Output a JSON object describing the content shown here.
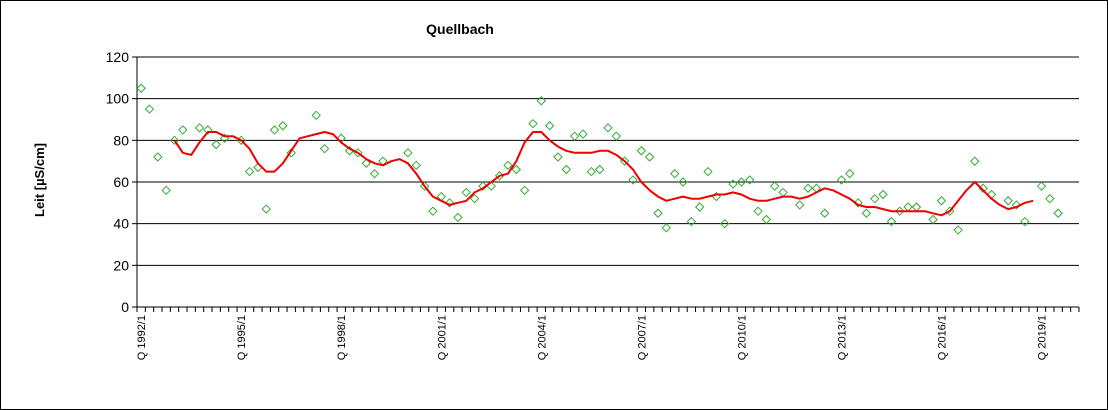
{
  "chart_data": {
    "type": "line",
    "title": "Quellbach",
    "ylabel": "Leit [µS/cm]",
    "xlabel": "",
    "ylim": [
      0,
      120
    ],
    "yticks": [
      0,
      20,
      40,
      60,
      80,
      100,
      120
    ],
    "grid": "horizontal",
    "legend": "none",
    "x_start": [
      1992,
      1
    ],
    "x_count": 113,
    "xtick_labels": [
      "Q 1992/1",
      "Q 1995/1",
      "Q 1998/1",
      "Q 2001/1",
      "Q 2004/1",
      "Q 2007/1",
      "Q 2010/1",
      "Q 2013/1",
      "Q 2016/1",
      "Q 2019/1"
    ],
    "colors": {
      "scatter": "#33aa33",
      "line": "#ee0000",
      "grid": "#000000"
    },
    "series": [
      {
        "kind": "scatter",
        "points": [
          [
            "1992 Q1",
            105
          ],
          [
            "1992 Q2",
            95
          ],
          [
            "1992 Q3",
            72
          ],
          [
            "1992 Q4",
            56
          ],
          [
            "1993 Q1",
            80
          ],
          [
            "1993 Q2",
            85
          ],
          [
            "1993 Q4",
            86
          ],
          [
            "1994 Q1",
            85
          ],
          [
            "1994 Q2",
            78
          ],
          [
            "1994 Q3",
            81
          ],
          [
            "1995 Q1",
            80
          ],
          [
            "1995 Q2",
            65
          ],
          [
            "1995 Q3",
            67
          ],
          [
            "1995 Q4",
            47
          ],
          [
            "1996 Q1",
            85
          ],
          [
            "1996 Q2",
            87
          ],
          [
            "1996 Q3",
            74
          ],
          [
            "1997 Q2",
            92
          ],
          [
            "1997 Q3",
            76
          ],
          [
            "1998 Q1",
            81
          ],
          [
            "1998 Q2",
            75
          ],
          [
            "1998 Q3",
            74
          ],
          [
            "1998 Q4",
            69
          ],
          [
            "1999 Q1",
            64
          ],
          [
            "1999 Q2",
            70
          ],
          [
            "2000 Q1",
            74
          ],
          [
            "2000 Q2",
            68
          ],
          [
            "2000 Q3",
            58
          ],
          [
            "2000 Q4",
            46
          ],
          [
            "2001 Q1",
            53
          ],
          [
            "2001 Q2",
            50
          ],
          [
            "2001 Q3",
            43
          ],
          [
            "2001 Q4",
            55
          ],
          [
            "2002 Q1",
            52
          ],
          [
            "2002 Q2",
            58
          ],
          [
            "2002 Q3",
            58
          ],
          [
            "2002 Q4",
            63
          ],
          [
            "2003 Q1",
            68
          ],
          [
            "2003 Q2",
            66
          ],
          [
            "2003 Q3",
            56
          ],
          [
            "2003 Q4",
            88
          ],
          [
            "2004 Q1",
            99
          ],
          [
            "2004 Q2",
            87
          ],
          [
            "2004 Q3",
            72
          ],
          [
            "2004 Q4",
            66
          ],
          [
            "2005 Q1",
            82
          ],
          [
            "2005 Q2",
            83
          ],
          [
            "2005 Q3",
            65
          ],
          [
            "2005 Q4",
            66
          ],
          [
            "2006 Q1",
            86
          ],
          [
            "2006 Q2",
            82
          ],
          [
            "2006 Q3",
            70
          ],
          [
            "2006 Q4",
            61
          ],
          [
            "2007 Q1",
            75
          ],
          [
            "2007 Q2",
            72
          ],
          [
            "2007 Q3",
            45
          ],
          [
            "2007 Q4",
            38
          ],
          [
            "2008 Q1",
            64
          ],
          [
            "2008 Q2",
            60
          ],
          [
            "2008 Q3",
            41
          ],
          [
            "2008 Q4",
            48
          ],
          [
            "2009 Q1",
            65
          ],
          [
            "2009 Q2",
            53
          ],
          [
            "2009 Q3",
            40
          ],
          [
            "2009 Q4",
            59
          ],
          [
            "2010 Q1",
            60
          ],
          [
            "2010 Q2",
            61
          ],
          [
            "2010 Q3",
            46
          ],
          [
            "2010 Q4",
            42
          ],
          [
            "2011 Q1",
            58
          ],
          [
            "2011 Q2",
            55
          ],
          [
            "2011 Q4",
            49
          ],
          [
            "2012 Q1",
            57
          ],
          [
            "2012 Q2",
            57
          ],
          [
            "2012 Q3",
            45
          ],
          [
            "2013 Q1",
            61
          ],
          [
            "2013 Q2",
            64
          ],
          [
            "2013 Q3",
            50
          ],
          [
            "2013 Q4",
            45
          ],
          [
            "2014 Q1",
            52
          ],
          [
            "2014 Q2",
            54
          ],
          [
            "2014 Q3",
            41
          ],
          [
            "2014 Q4",
            46
          ],
          [
            "2015 Q1",
            48
          ],
          [
            "2015 Q2",
            48
          ],
          [
            "2015 Q4",
            42
          ],
          [
            "2016 Q1",
            51
          ],
          [
            "2016 Q2",
            46
          ],
          [
            "2016 Q3",
            37
          ],
          [
            "2017 Q1",
            70
          ],
          [
            "2017 Q2",
            57
          ],
          [
            "2017 Q3",
            54
          ],
          [
            "2018 Q1",
            51
          ],
          [
            "2018 Q2",
            49
          ],
          [
            "2018 Q3",
            41
          ],
          [
            "2019 Q1",
            58
          ],
          [
            "2019 Q2",
            52
          ],
          [
            "2019 Q3",
            45
          ]
        ]
      },
      {
        "kind": "line",
        "points": [
          [
            "1993 Q1",
            80
          ],
          [
            "1993 Q2",
            74
          ],
          [
            "1993 Q3",
            73
          ],
          [
            "1993 Q4",
            79
          ],
          [
            "1994 Q1",
            84
          ],
          [
            "1994 Q2",
            84
          ],
          [
            "1994 Q3",
            82
          ],
          [
            "1994 Q4",
            82
          ],
          [
            "1995 Q1",
            80
          ],
          [
            "1995 Q2",
            76
          ],
          [
            "1995 Q3",
            69
          ],
          [
            "1995 Q4",
            65
          ],
          [
            "1996 Q1",
            65
          ],
          [
            "1996 Q2",
            69
          ],
          [
            "1996 Q3",
            75
          ],
          [
            "1996 Q4",
            81
          ],
          [
            "1997 Q1",
            82
          ],
          [
            "1997 Q2",
            83
          ],
          [
            "1997 Q3",
            84
          ],
          [
            "1997 Q4",
            83
          ],
          [
            "1998 Q1",
            79
          ],
          [
            "1998 Q2",
            76
          ],
          [
            "1998 Q3",
            74
          ],
          [
            "1998 Q4",
            71
          ],
          [
            "1999 Q1",
            69
          ],
          [
            "1999 Q2",
            68
          ],
          [
            "1999 Q3",
            70
          ],
          [
            "1999 Q4",
            71
          ],
          [
            "2000 Q1",
            69
          ],
          [
            "2000 Q2",
            64
          ],
          [
            "2000 Q3",
            58
          ],
          [
            "2000 Q4",
            53
          ],
          [
            "2001 Q1",
            51
          ],
          [
            "2001 Q2",
            49
          ],
          [
            "2001 Q3",
            50
          ],
          [
            "2001 Q4",
            51
          ],
          [
            "2002 Q1",
            55
          ],
          [
            "2002 Q2",
            57
          ],
          [
            "2002 Q3",
            60
          ],
          [
            "2002 Q4",
            63
          ],
          [
            "2003 Q1",
            64
          ],
          [
            "2003 Q2",
            70
          ],
          [
            "2003 Q3",
            79
          ],
          [
            "2003 Q4",
            84
          ],
          [
            "2004 Q1",
            84
          ],
          [
            "2004 Q2",
            80
          ],
          [
            "2004 Q3",
            77
          ],
          [
            "2004 Q4",
            75
          ],
          [
            "2005 Q1",
            74
          ],
          [
            "2005 Q2",
            74
          ],
          [
            "2005 Q3",
            74
          ],
          [
            "2005 Q4",
            75
          ],
          [
            "2006 Q1",
            75
          ],
          [
            "2006 Q2",
            73
          ],
          [
            "2006 Q3",
            70
          ],
          [
            "2006 Q4",
            66
          ],
          [
            "2007 Q1",
            60
          ],
          [
            "2007 Q2",
            56
          ],
          [
            "2007 Q3",
            53
          ],
          [
            "2007 Q4",
            51
          ],
          [
            "2008 Q1",
            52
          ],
          [
            "2008 Q2",
            53
          ],
          [
            "2008 Q3",
            52
          ],
          [
            "2008 Q4",
            52
          ],
          [
            "2009 Q1",
            53
          ],
          [
            "2009 Q2",
            54
          ],
          [
            "2009 Q3",
            54
          ],
          [
            "2009 Q4",
            55
          ],
          [
            "2010 Q1",
            54
          ],
          [
            "2010 Q2",
            52
          ],
          [
            "2010 Q3",
            51
          ],
          [
            "2010 Q4",
            51
          ],
          [
            "2011 Q1",
            52
          ],
          [
            "2011 Q2",
            53
          ],
          [
            "2011 Q3",
            53
          ],
          [
            "2011 Q4",
            52
          ],
          [
            "2012 Q1",
            53
          ],
          [
            "2012 Q2",
            55
          ],
          [
            "2012 Q3",
            57
          ],
          [
            "2012 Q4",
            56
          ],
          [
            "2013 Q1",
            54
          ],
          [
            "2013 Q2",
            52
          ],
          [
            "2013 Q3",
            49
          ],
          [
            "2013 Q4",
            48
          ],
          [
            "2014 Q1",
            48
          ],
          [
            "2014 Q2",
            47
          ],
          [
            "2014 Q3",
            46
          ],
          [
            "2014 Q4",
            46
          ],
          [
            "2015 Q1",
            46
          ],
          [
            "2015 Q2",
            46
          ],
          [
            "2015 Q3",
            46
          ],
          [
            "2015 Q4",
            45
          ],
          [
            "2016 Q1",
            44
          ],
          [
            "2016 Q2",
            46
          ],
          [
            "2016 Q3",
            51
          ],
          [
            "2016 Q4",
            56
          ],
          [
            "2017 Q1",
            60
          ],
          [
            "2017 Q2",
            56
          ],
          [
            "2017 Q3",
            52
          ],
          [
            "2017 Q4",
            49
          ],
          [
            "2018 Q1",
            47
          ],
          [
            "2018 Q2",
            48
          ],
          [
            "2018 Q3",
            50
          ],
          [
            "2018 Q4",
            51
          ]
        ]
      }
    ]
  }
}
